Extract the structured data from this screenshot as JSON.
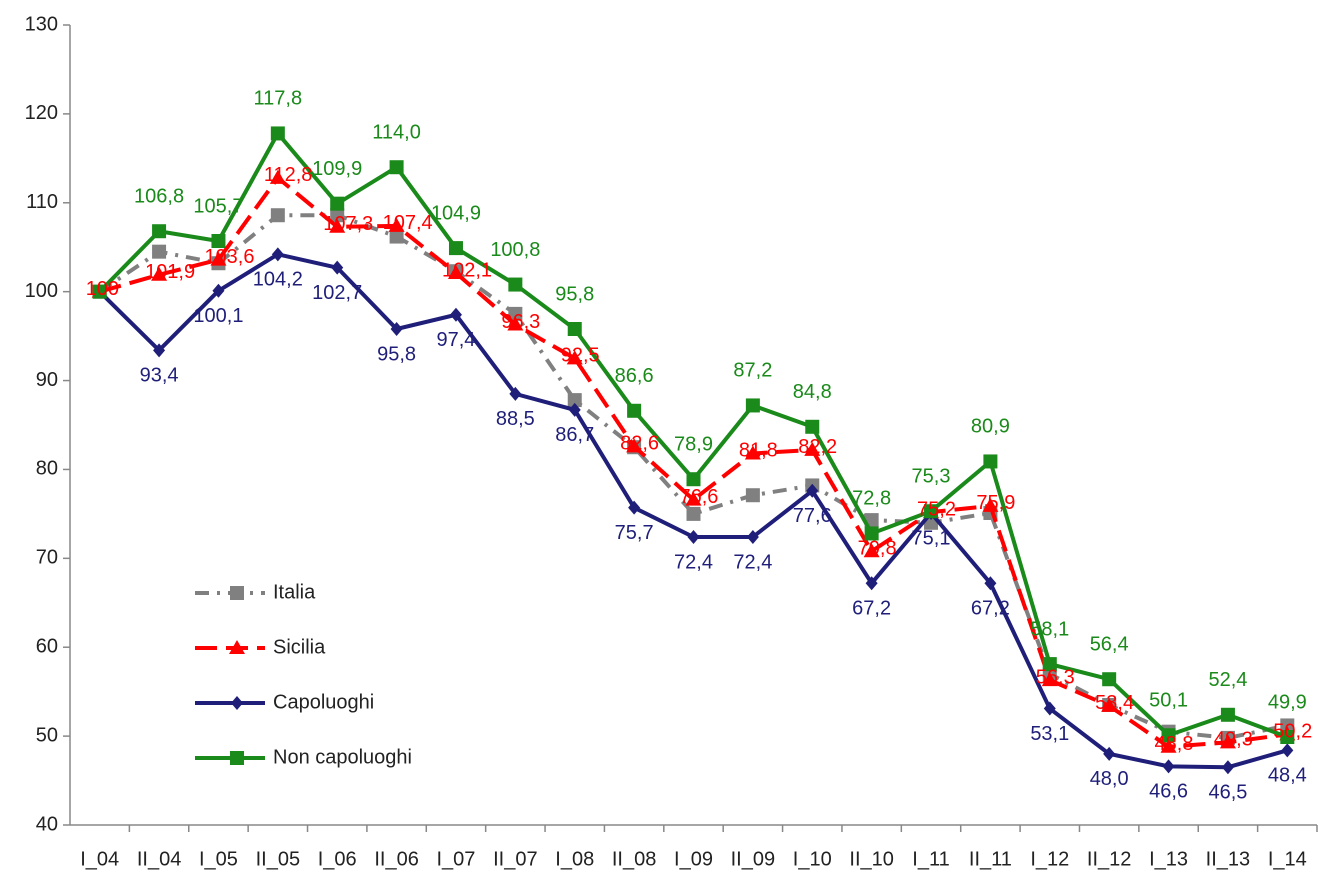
{
  "chart_data": {
    "type": "line",
    "categories": [
      "I_04",
      "II_04",
      "I_05",
      "II_05",
      "I_06",
      "II_06",
      "I_07",
      "II_07",
      "I_08",
      "II_08",
      "I_09",
      "II_09",
      "I_10",
      "II_10",
      "I_11",
      "II_11",
      "I_12",
      "II_12",
      "I_13",
      "II_13",
      "I_14"
    ],
    "ylim": [
      40,
      130
    ],
    "yticks": [
      40,
      50,
      60,
      70,
      80,
      90,
      100,
      110,
      120,
      130
    ],
    "legend": "lower left",
    "series": [
      {
        "name": "Italia",
        "color": "#808080",
        "line_style": "dashdot",
        "marker": "square",
        "values": [
          100,
          104.5,
          103.2,
          108.6,
          108.6,
          106.2,
          102.3,
          97.5,
          87.8,
          82.5,
          75.0,
          77.1,
          78.2,
          74.3,
          74.0,
          75.1,
          57.0,
          53.5,
          50.5,
          49.8,
          51.2
        ]
      },
      {
        "name": "Sicilia",
        "color": "#ff0000",
        "line_style": "dashed",
        "marker": "triangle",
        "values": [
          100,
          101.9,
          103.6,
          112.8,
          107.3,
          107.4,
          102.1,
          96.3,
          92.5,
          82.6,
          76.6,
          81.8,
          82.2,
          70.8,
          75.2,
          75.9,
          56.3,
          53.4,
          48.8,
          49.3,
          50.2
        ],
        "value_labels": [
          "100",
          "101,9",
          "103,6",
          "112,8",
          "107,3",
          "107,4",
          "102,1",
          "96,3",
          "92,5",
          "82,6",
          "76,6",
          "81,8",
          "82,2",
          "70,8",
          "75,2",
          "75,9",
          "56,3",
          "53,4",
          "48,8",
          "49,3",
          "50,2"
        ]
      },
      {
        "name": "Capoluoghi",
        "color": "#1f1f7a",
        "line_style": "solid",
        "marker": "diamond",
        "values": [
          100,
          93.4,
          100.1,
          104.2,
          102.7,
          95.8,
          97.4,
          88.5,
          86.7,
          75.7,
          72.4,
          72.4,
          77.6,
          67.2,
          75.1,
          67.2,
          53.1,
          48.0,
          46.6,
          46.5,
          48.4
        ],
        "value_labels": [
          null,
          "93,4",
          "100,1",
          "104,2",
          "102,7",
          "95,8",
          "97,4",
          "88,5",
          "86,7",
          "75,7",
          "72,4",
          "72,4",
          "77,6",
          "67,2",
          "75,1",
          "67,2",
          "53,1",
          "48,0",
          "46,6",
          "46,5",
          "48,4"
        ]
      },
      {
        "name": "Non capoluoghi",
        "color": "#1a8a1a",
        "line_style": "solid",
        "marker": "square",
        "values": [
          100,
          106.8,
          105.7,
          117.8,
          109.9,
          114.0,
          104.9,
          100.8,
          95.8,
          86.6,
          78.9,
          87.2,
          84.8,
          72.8,
          75.3,
          80.9,
          58.1,
          56.4,
          50.1,
          52.4,
          49.9
        ],
        "value_labels": [
          null,
          "106,8",
          "105,7",
          "117,8",
          "109,9",
          "114,0",
          "104,9",
          "100,8",
          "95,8",
          "86,6",
          "78,9",
          "87,2",
          "84,8",
          "72,8",
          "75,3",
          "80,9",
          "58,1",
          "56,4",
          "50,1",
          "52,4",
          "49,9"
        ]
      }
    ]
  }
}
